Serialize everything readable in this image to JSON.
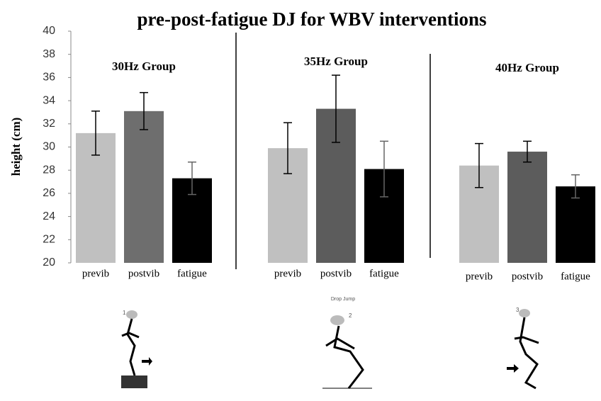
{
  "chart_data": {
    "type": "bar",
    "title": "pre-post-fatigue DJ for WBV  interventions",
    "y_label": "height (cm)",
    "ylim": [
      20,
      40
    ],
    "yticks": [
      20,
      22,
      24,
      26,
      28,
      30,
      32,
      34,
      36,
      38,
      40
    ],
    "groups": [
      {
        "name": "30Hz Group",
        "categories": [
          "previb",
          "postvib",
          "fatigue"
        ],
        "values": [
          31.2,
          33.1,
          27.3
        ],
        "errors": [
          1.9,
          1.6,
          1.4
        ],
        "colors": [
          "#c0c0c0",
          "#6e6e6e",
          "#000000"
        ]
      },
      {
        "name": "35Hz Group",
        "categories": [
          "previb",
          "postvib",
          "fatigue"
        ],
        "values": [
          29.9,
          33.3,
          28.1
        ],
        "errors": [
          2.2,
          2.9,
          2.4
        ],
        "colors": [
          "#c0c0c0",
          "#5c5c5c",
          "#000000"
        ]
      },
      {
        "name": "40Hz Group",
        "categories": [
          "previb",
          "postvib",
          "fatigue"
        ],
        "values": [
          28.4,
          29.6,
          26.6
        ],
        "errors": [
          1.9,
          0.9,
          1.0
        ],
        "colors": [
          "#c0c0c0",
          "#5c5c5c",
          "#000000"
        ]
      }
    ],
    "figure_caption": "Drop Jump",
    "figure_labels": [
      "1",
      "2",
      "3"
    ]
  }
}
